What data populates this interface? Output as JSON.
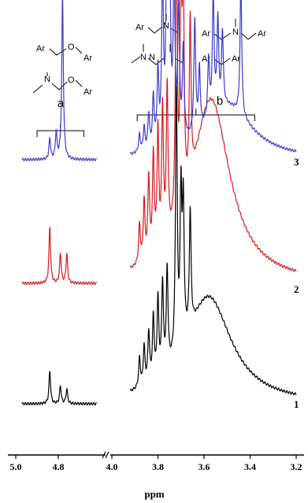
{
  "chart_data": {
    "type": "line",
    "xlabel": "ppm",
    "x_reversed": true,
    "axis_break": [
      4.5,
      4.0
    ],
    "segments": [
      {
        "range": [
          5.0,
          4.6
        ],
        "ticks": [
          "5.0",
          "4.8"
        ],
        "tick_values": [
          5.0,
          4.8
        ]
      },
      {
        "range": [
          4.0,
          3.2
        ],
        "ticks": [
          "4.0",
          "3.8",
          "3.6",
          "3.4",
          "3.2"
        ],
        "tick_values": [
          4.0,
          3.8,
          3.6,
          3.4,
          3.2
        ]
      }
    ],
    "series": [
      {
        "name": "1",
        "color": "#000000",
        "baseline": 0.02,
        "peaks": [
          {
            "ppm": 4.84,
            "h": 0.11
          },
          {
            "ppm": 4.79,
            "h": 0.06
          },
          {
            "ppm": 4.76,
            "h": 0.05
          },
          {
            "ppm": 3.88,
            "h": 0.1
          },
          {
            "ppm": 3.86,
            "h": 0.13
          },
          {
            "ppm": 3.84,
            "h": 0.17
          },
          {
            "ppm": 3.82,
            "h": 0.21
          },
          {
            "ppm": 3.8,
            "h": 0.26
          },
          {
            "ppm": 3.78,
            "h": 0.3
          },
          {
            "ppm": 3.76,
            "h": 0.33
          },
          {
            "ppm": 3.72,
            "h": 0.9
          },
          {
            "ppm": 3.7,
            "h": 0.5
          },
          {
            "ppm": 3.69,
            "h": 0.45
          },
          {
            "ppm": 3.66,
            "h": 0.4
          }
        ],
        "broad": {
          "center": 3.58,
          "width": 0.12,
          "h": 0.36
        }
      },
      {
        "name": "2",
        "color": "#d7191c",
        "baseline": 0.02,
        "peaks": [
          {
            "ppm": 4.84,
            "h": 0.19
          },
          {
            "ppm": 4.79,
            "h": 0.1
          },
          {
            "ppm": 4.76,
            "h": 0.1
          },
          {
            "ppm": 3.88,
            "h": 0.13
          },
          {
            "ppm": 3.86,
            "h": 0.2
          },
          {
            "ppm": 3.84,
            "h": 0.27
          },
          {
            "ppm": 3.82,
            "h": 0.33
          },
          {
            "ppm": 3.8,
            "h": 0.4
          },
          {
            "ppm": 3.78,
            "h": 0.46
          },
          {
            "ppm": 3.76,
            "h": 0.51
          },
          {
            "ppm": 3.72,
            "h": 1.0
          },
          {
            "ppm": 3.7,
            "h": 0.75
          },
          {
            "ppm": 3.69,
            "h": 0.7
          },
          {
            "ppm": 3.66,
            "h": 0.55
          }
        ],
        "broad": {
          "center": 3.57,
          "width": 0.1,
          "h": 0.62
        }
      },
      {
        "name": "3",
        "color": "#3b3cc9",
        "baseline": 0.02,
        "peaks": [
          {
            "ppm": 4.84,
            "h": 0.07
          },
          {
            "ppm": 4.81,
            "h": 0.09
          },
          {
            "ppm": 4.78,
            "h": 0.55
          },
          {
            "ppm": 3.88,
            "h": 0.06
          },
          {
            "ppm": 3.86,
            "h": 0.08
          },
          {
            "ppm": 3.84,
            "h": 0.12
          },
          {
            "ppm": 3.82,
            "h": 0.17
          },
          {
            "ppm": 3.8,
            "h": 0.25
          },
          {
            "ppm": 3.78,
            "h": 0.55
          },
          {
            "ppm": 3.76,
            "h": 0.9
          },
          {
            "ppm": 3.75,
            "h": 0.7
          },
          {
            "ppm": 3.73,
            "h": 0.55
          },
          {
            "ppm": 3.71,
            "h": 0.45
          },
          {
            "ppm": 3.69,
            "h": 0.3
          },
          {
            "ppm": 3.64,
            "h": 0.38
          },
          {
            "ppm": 3.62,
            "h": 0.2
          },
          {
            "ppm": 3.58,
            "h": 0.2
          },
          {
            "ppm": 3.56,
            "h": 0.4
          },
          {
            "ppm": 3.54,
            "h": 0.3
          },
          {
            "ppm": 3.52,
            "h": 0.25
          },
          {
            "ppm": 3.44,
            "h": 0.45
          }
        ],
        "broad": {
          "center": 3.5,
          "width": 0.13,
          "h": 0.18
        }
      }
    ],
    "annotations": {
      "group_a": {
        "label": "a",
        "ppm_range": [
          4.9,
          4.68
        ]
      },
      "group_b": {
        "label": "b",
        "ppm_range": [
          3.89,
          3.38
        ]
      }
    },
    "structures": {
      "a": [
        {
          "left": "Ar",
          "right": "Ar",
          "linker": "O",
          "substituent": ""
        },
        {
          "left": "",
          "right": "Ar",
          "linker": "O",
          "substituent": "N"
        }
      ],
      "b": [
        {
          "left": "Ar",
          "right": "",
          "linker": "N"
        },
        {
          "left": "Ar",
          "right": "Ar",
          "linker": "N"
        },
        {
          "left": "",
          "right": "",
          "linker": "N N"
        },
        {
          "left": "Ar",
          "right": "Ar",
          "linker": ""
        }
      ]
    }
  }
}
